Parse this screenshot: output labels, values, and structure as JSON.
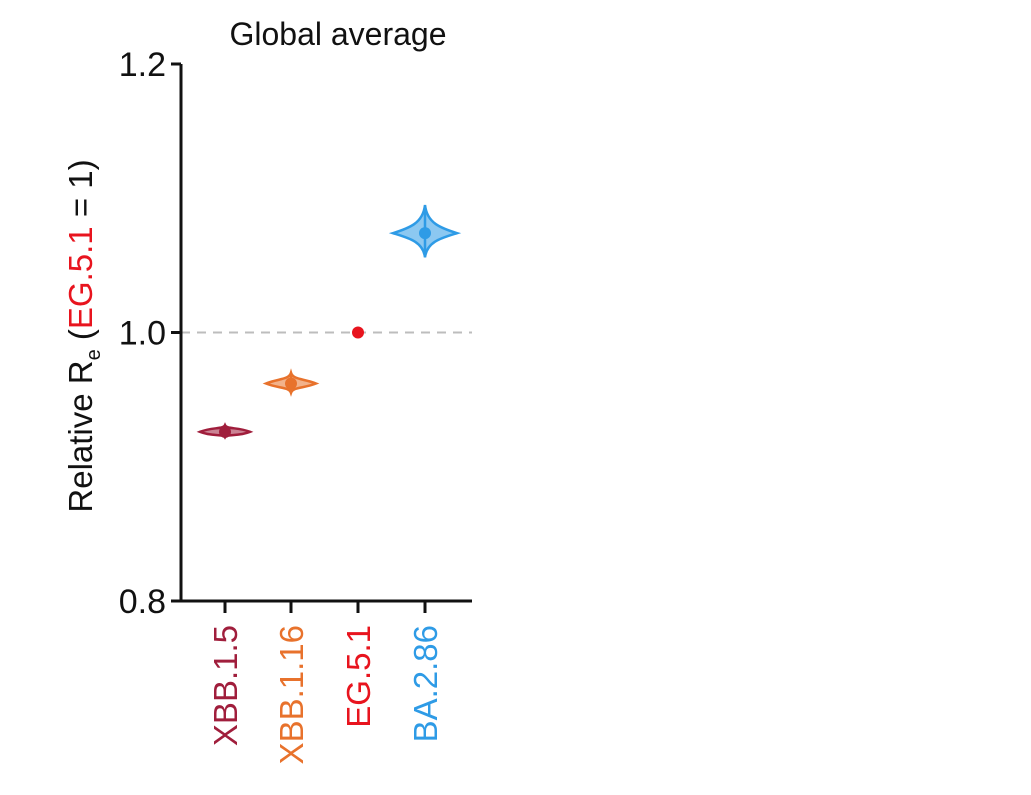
{
  "chart_data": {
    "type": "violin",
    "title": "Global average",
    "ylabel": {
      "prefix": "Relative R",
      "subscript": "e",
      "open": " (",
      "reference": "EG.5.1",
      "suffix": " = 1)"
    },
    "ylim": [
      0.8,
      1.2
    ],
    "yticks": [
      "0.8",
      "1.0",
      "1.2"
    ],
    "reference_line": 1.0,
    "grid": false,
    "categories": [
      "XBB.1.5",
      "XBB.1.16",
      "EG.5.1",
      "BA.2.86"
    ],
    "series": [
      {
        "values": [
          0.926,
          0.962,
          1.0,
          1.074
        ]
      }
    ],
    "spread": [
      {
        "low": 0.922,
        "high": 0.931
      },
      {
        "low": 0.955,
        "high": 0.97
      },
      {
        "low": 1.0,
        "high": 1.0
      },
      {
        "low": 1.056,
        "high": 1.095
      }
    ],
    "colors": [
      "#A01E3C",
      "#E8722C",
      "#E8141E",
      "#2E9BE6"
    ],
    "reference_color": "#E8141E"
  }
}
